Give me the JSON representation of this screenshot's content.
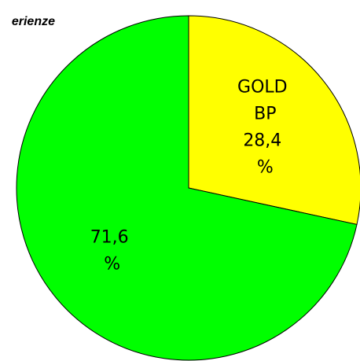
{
  "chart_data": {
    "type": "pie",
    "title": "erienze",
    "categories": [
      "GOLD BP",
      null
    ],
    "values": [
      28.4,
      71.6
    ],
    "value_labels": [
      "28,4 %",
      "71,6 %"
    ],
    "colors": [
      "#ffff00",
      "#00ff00"
    ],
    "start_angle": 0,
    "direction": "clockwise"
  }
}
